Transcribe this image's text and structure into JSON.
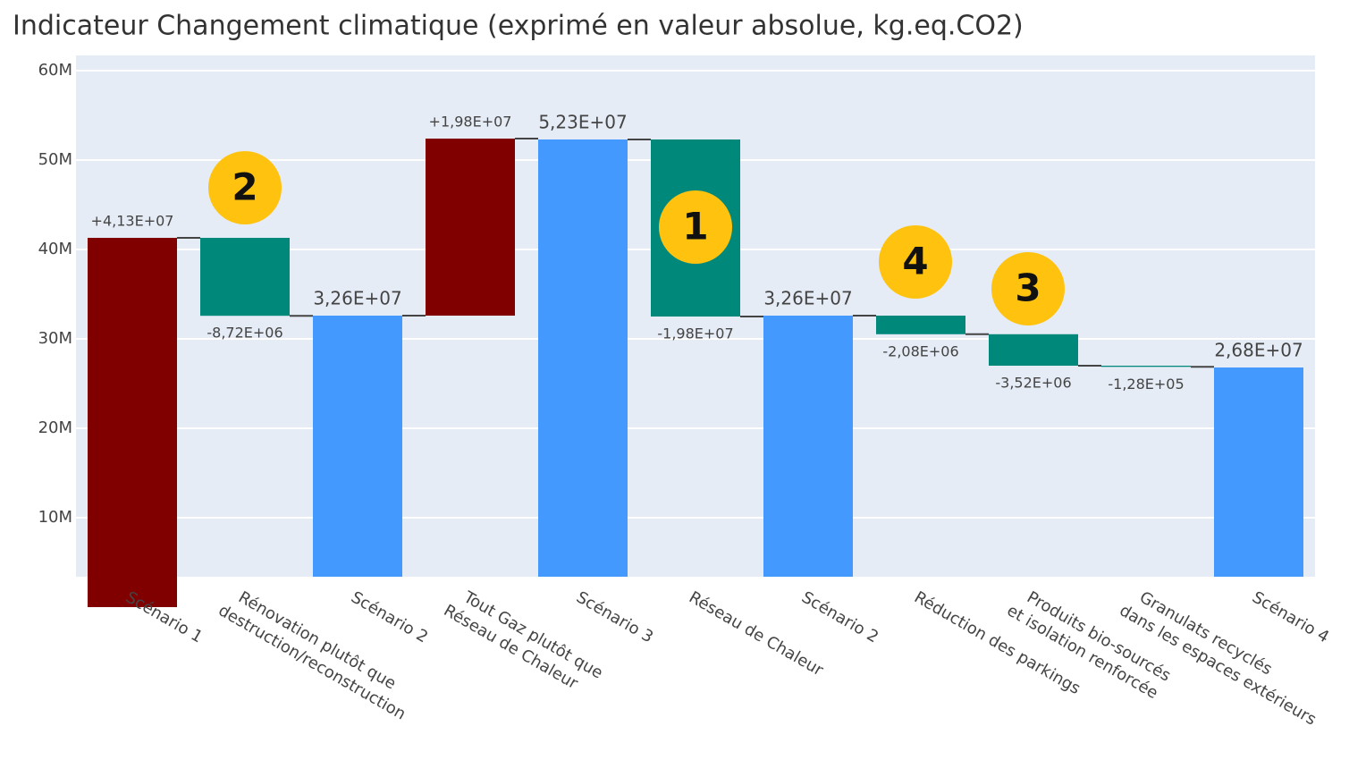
{
  "chart_data": {
    "type": "waterfall",
    "title": "Indicateur Changement climatique (exprimé en valeur absolue, kg.eq.CO2)",
    "categories": [
      "Scénario 1",
      "Rénovation plutôt que\ndestruction/reconstruction",
      "Scénario 2",
      "Tout Gaz plutôt que\nRéseau de Chaleur",
      "Scénario 3",
      "Réseau de Chaleur",
      "Scénario 2",
      "Réduction des parkings",
      "Produits bio-sourcés\net isolation renforcée",
      "Granulats recyclés\ndans les espaces extérieurs",
      "Scénario 4"
    ],
    "measures": [
      "relative",
      "relative",
      "total",
      "relative",
      "total",
      "relative",
      "total",
      "relative",
      "relative",
      "relative",
      "total"
    ],
    "values": [
      41300000,
      -8720000,
      32600000,
      19800000,
      52300000,
      -19800000,
      32600000,
      -2080000,
      -3520000,
      -128000,
      26800000
    ],
    "value_labels": [
      "+4,13E+07",
      "-8,72E+06",
      "3,26E+07",
      "+1,98E+07",
      "5,23E+07",
      "-1,98E+07",
      "3,26E+07",
      "-2,08E+06",
      "-3,52E+06",
      "-1,28E+05",
      "2,68E+07"
    ],
    "colors": {
      "increasing": "#800000",
      "decreasing": "#00897b",
      "total": "#4499ff"
    },
    "ylim": [
      3400000,
      61700000
    ],
    "yticks": [
      {
        "value": 10000000,
        "label": "10M"
      },
      {
        "value": 20000000,
        "label": "20M"
      },
      {
        "value": 30000000,
        "label": "30M"
      },
      {
        "value": 40000000,
        "label": "40M"
      },
      {
        "value": 50000000,
        "label": "50M"
      },
      {
        "value": 60000000,
        "label": "60M"
      }
    ],
    "grid": true,
    "annotations": [
      "2",
      "1",
      "4",
      "3"
    ]
  }
}
